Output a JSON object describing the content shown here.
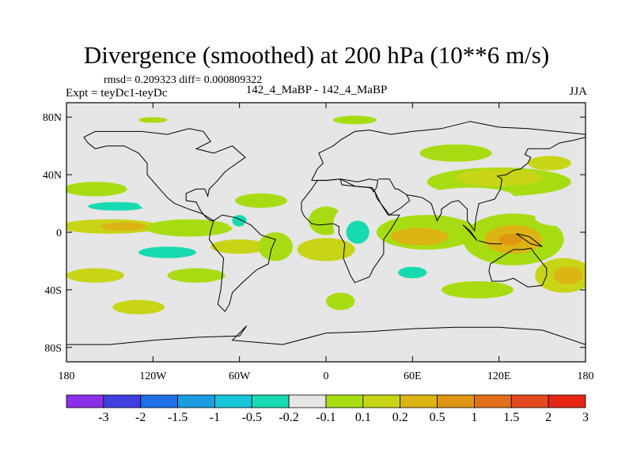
{
  "chart_data": {
    "type": "filled-contour-map",
    "title": "Divergence (smoothed) at 200 hPa (10**6 m/s)",
    "stats_text": "rmsd= 0.209323  diff= 0.000809322",
    "experiment_text": "Expt = teyDc1-teyDc",
    "center_label": "142_4_MaBP - 142_4_MaBP",
    "season": "JJA",
    "x_axis": {
      "range": [
        -180,
        180
      ],
      "ticks": [
        {
          "value": -180,
          "label": "180"
        },
        {
          "value": -120,
          "label": "120W"
        },
        {
          "value": -60,
          "label": "60W"
        },
        {
          "value": 0,
          "label": "0"
        },
        {
          "value": 60,
          "label": "60E"
        },
        {
          "value": 120,
          "label": "120E"
        },
        {
          "value": 180,
          "label": "180"
        }
      ]
    },
    "y_axis": {
      "range": [
        -90,
        90
      ],
      "ticks": [
        {
          "value": 80,
          "label": "80N"
        },
        {
          "value": 40,
          "label": "40N"
        },
        {
          "value": 0,
          "label": "0"
        },
        {
          "value": -40,
          "label": "40S"
        },
        {
          "value": -80,
          "label": "80S"
        }
      ]
    },
    "colorbar": {
      "labels": [
        "-3",
        "-2",
        "-1.5",
        "-1",
        "-0.5",
        "-0.2",
        "-0.1",
        "0.1",
        "0.2",
        "0.5",
        "1",
        "1.5",
        "2",
        "3"
      ],
      "colors": [
        "#8c2fe8",
        "#3f3fe0",
        "#1f6fe6",
        "#1c9be0",
        "#18c6da",
        "#18dab0",
        "#e6e6e6",
        "#a8dc12",
        "#c8d416",
        "#dcb414",
        "#de9614",
        "#e2701a",
        "#e44a1e",
        "#e62414"
      ]
    },
    "regions": [
      {
        "level": "0.1",
        "lon": -160,
        "lat": 30,
        "rx": 22,
        "ry": 5
      },
      {
        "level": "-0.1",
        "lon": -150,
        "lat": 18,
        "rx": 35,
        "ry": 6
      },
      {
        "level": "-0.2",
        "lon": -145,
        "lat": 18,
        "rx": 20,
        "ry": 3
      },
      {
        "level": "-0.1",
        "lon": -90,
        "lat": 20,
        "rx": 40,
        "ry": 8
      },
      {
        "level": "0.2",
        "lon": -150,
        "lat": 4,
        "rx": 35,
        "ry": 5
      },
      {
        "level": "0.5",
        "lon": -140,
        "lat": 4,
        "rx": 16,
        "ry": 3
      },
      {
        "level": "0.1",
        "lon": -95,
        "lat": 3,
        "rx": 30,
        "ry": 6
      },
      {
        "level": "-0.1",
        "lon": -150,
        "lat": -15,
        "rx": 35,
        "ry": 6
      },
      {
        "level": "-0.2",
        "lon": -110,
        "lat": -14,
        "rx": 20,
        "ry": 4
      },
      {
        "level": "0.2",
        "lon": -160,
        "lat": -30,
        "rx": 20,
        "ry": 5
      },
      {
        "level": "0.1",
        "lon": -90,
        "lat": -30,
        "rx": 20,
        "ry": 5
      },
      {
        "level": "-0.1",
        "lon": -165,
        "lat": -50,
        "rx": 15,
        "ry": 8
      },
      {
        "level": "0.2",
        "lon": -130,
        "lat": -52,
        "rx": 18,
        "ry": 5
      },
      {
        "level": "-0.1",
        "lon": -115,
        "lat": -74,
        "rx": 14,
        "ry": 3
      },
      {
        "level": "-0.1",
        "lon": -70,
        "lat": -74,
        "rx": 10,
        "ry": 2
      },
      {
        "level": "-0.1",
        "lon": -60,
        "lat": 10,
        "rx": 10,
        "ry": 8
      },
      {
        "level": "-0.2",
        "lon": -60,
        "lat": 8,
        "rx": 5,
        "ry": 4
      },
      {
        "level": "0.1",
        "lon": -45,
        "lat": 22,
        "rx": 18,
        "ry": 5
      },
      {
        "level": "-0.1",
        "lon": -45,
        "lat": 5,
        "rx": 12,
        "ry": 5
      },
      {
        "level": "0.2",
        "lon": -60,
        "lat": -10,
        "rx": 20,
        "ry": 5
      },
      {
        "level": "0.1",
        "lon": -35,
        "lat": -10,
        "rx": 12,
        "ry": 10
      },
      {
        "level": "-0.1",
        "lon": -40,
        "lat": -28,
        "rx": 15,
        "ry": 5
      },
      {
        "level": "-0.1",
        "lon": -30,
        "lat": -48,
        "rx": 25,
        "ry": 8
      },
      {
        "level": "-0.1",
        "lon": -10,
        "lat": 38,
        "rx": 30,
        "ry": 6
      },
      {
        "level": "-0.1",
        "lon": 20,
        "lat": 30,
        "rx": 20,
        "ry": 6
      },
      {
        "level": "0.1",
        "lon": 0,
        "lat": 8,
        "rx": 12,
        "ry": 10
      },
      {
        "level": "-0.1",
        "lon": 20,
        "lat": 5,
        "rx": 15,
        "ry": 15
      },
      {
        "level": "-0.2",
        "lon": 22,
        "lat": 0,
        "rx": 8,
        "ry": 8
      },
      {
        "level": "0.2",
        "lon": 0,
        "lat": -12,
        "rx": 20,
        "ry": 8
      },
      {
        "level": "-0.1",
        "lon": 10,
        "lat": -30,
        "rx": 20,
        "ry": 5
      },
      {
        "level": "0.1",
        "lon": 10,
        "lat": -48,
        "rx": 10,
        "ry": 6
      },
      {
        "level": "-0.1",
        "lon": 30,
        "lat": -55,
        "rx": 10,
        "ry": 6
      },
      {
        "level": "-0.1",
        "lon": 30,
        "lat": 50,
        "rx": 8,
        "ry": 5
      },
      {
        "level": "0.1",
        "lon": 20,
        "lat": 78,
        "rx": 15,
        "ry": 3
      },
      {
        "level": "-0.1",
        "lon": -35,
        "lat": 78,
        "rx": 10,
        "ry": 3
      },
      {
        "level": "0.1",
        "lon": -120,
        "lat": 78,
        "rx": 10,
        "ry": 2
      },
      {
        "level": "-0.1",
        "lon": -15,
        "lat": 60,
        "rx": 8,
        "ry": 4
      },
      {
        "level": "0.1",
        "lon": 120,
        "lat": 35,
        "rx": 50,
        "ry": 10
      },
      {
        "level": "0.2",
        "lon": 120,
        "lat": 38,
        "rx": 30,
        "ry": 6
      },
      {
        "level": "0.1",
        "lon": 90,
        "lat": 55,
        "rx": 25,
        "ry": 6
      },
      {
        "level": "0.2",
        "lon": 155,
        "lat": 48,
        "rx": 15,
        "ry": 5
      },
      {
        "level": "-0.1",
        "lon": 100,
        "lat": 25,
        "rx": 30,
        "ry": 6
      },
      {
        "level": "0.1",
        "lon": 70,
        "lat": 0,
        "rx": 35,
        "ry": 12
      },
      {
        "level": "0.5",
        "lon": 65,
        "lat": -3,
        "rx": 20,
        "ry": 6
      },
      {
        "level": "0.1",
        "lon": 130,
        "lat": -5,
        "rx": 35,
        "ry": 18
      },
      {
        "level": "0.5",
        "lon": 130,
        "lat": -5,
        "rx": 20,
        "ry": 10
      },
      {
        "level": "1",
        "lon": 128,
        "lat": -5,
        "rx": 8,
        "ry": 4
      },
      {
        "level": "-0.1",
        "lon": 60,
        "lat": -28,
        "rx": 25,
        "ry": 8
      },
      {
        "level": "-0.2",
        "lon": 60,
        "lat": -28,
        "rx": 10,
        "ry": 4
      },
      {
        "level": "0.1",
        "lon": 105,
        "lat": -40,
        "rx": 25,
        "ry": 6
      },
      {
        "level": "0.2",
        "lon": 165,
        "lat": -30,
        "rx": 20,
        "ry": 12
      },
      {
        "level": "0.5",
        "lon": 168,
        "lat": -30,
        "rx": 10,
        "ry": 6
      },
      {
        "level": "-0.1",
        "lon": 165,
        "lat": 10,
        "rx": 20,
        "ry": 6
      },
      {
        "level": "-0.1",
        "lon": 130,
        "lat": -65,
        "rx": 12,
        "ry": 3
      }
    ],
    "coastlines": [
      [
        [
          -168,
          66
        ],
        [
          -160,
          70
        ],
        [
          -140,
          70
        ],
        [
          -128,
          70
        ],
        [
          -110,
          68
        ],
        [
          -95,
          72
        ],
        [
          -85,
          70
        ],
        [
          -80,
          63
        ],
        [
          -90,
          58
        ],
        [
          -78,
          55
        ],
        [
          -65,
          60
        ],
        [
          -56,
          52
        ],
        [
          -66,
          45
        ],
        [
          -70,
          42
        ],
        [
          -76,
          35
        ],
        [
          -81,
          30
        ],
        [
          -82,
          25
        ],
        [
          -84,
          30
        ],
        [
          -90,
          30
        ],
        [
          -97,
          27
        ],
        [
          -97,
          22
        ],
        [
          -90,
          21
        ],
        [
          -87,
          15
        ],
        [
          -83,
          10
        ],
        [
          -80,
          8
        ],
        [
          -78,
          8
        ],
        [
          -86,
          13
        ],
        [
          -95,
          16
        ],
        [
          -105,
          20
        ],
        [
          -110,
          24
        ],
        [
          -117,
          32
        ],
        [
          -124,
          40
        ],
        [
          -124,
          48
        ],
        [
          -130,
          55
        ],
        [
          -140,
          60
        ],
        [
          -152,
          60
        ],
        [
          -160,
          58
        ],
        [
          -165,
          62
        ],
        [
          -168,
          66
        ]
      ],
      [
        [
          -78,
          8
        ],
        [
          -72,
          12
        ],
        [
          -62,
          10
        ],
        [
          -52,
          5
        ],
        [
          -45,
          -2
        ],
        [
          -35,
          -5
        ],
        [
          -38,
          -12
        ],
        [
          -40,
          -22
        ],
        [
          -48,
          -26
        ],
        [
          -58,
          -35
        ],
        [
          -65,
          -42
        ],
        [
          -67,
          -50
        ],
        [
          -70,
          -55
        ],
        [
          -75,
          -50
        ],
        [
          -73,
          -40
        ],
        [
          -72,
          -30
        ],
        [
          -71,
          -18
        ],
        [
          -76,
          -12
        ],
        [
          -81,
          -5
        ],
        [
          -80,
          1
        ],
        [
          -78,
          8
        ]
      ],
      [
        [
          -10,
          36
        ],
        [
          -6,
          44
        ],
        [
          -2,
          48
        ],
        [
          -5,
          55
        ],
        [
          5,
          60
        ],
        [
          10,
          64
        ],
        [
          20,
          70
        ],
        [
          30,
          71
        ],
        [
          45,
          68
        ],
        [
          60,
          70
        ],
        [
          80,
          72
        ],
        [
          100,
          77
        ],
        [
          120,
          73
        ],
        [
          140,
          72
        ],
        [
          160,
          70
        ],
        [
          180,
          68
        ]
      ],
      [
        [
          -10,
          36
        ],
        [
          0,
          36
        ],
        [
          10,
          37
        ],
        [
          22,
          35
        ],
        [
          30,
          37
        ],
        [
          36,
          36
        ],
        [
          35,
          31
        ],
        [
          33,
          28
        ],
        [
          32,
          30
        ],
        [
          30,
          31
        ],
        [
          20,
          32
        ],
        [
          11,
          33
        ],
        [
          10,
          37
        ]
      ],
      [
        [
          -17,
          15
        ],
        [
          -17,
          21
        ],
        [
          -10,
          30
        ],
        [
          -6,
          36
        ],
        [
          0,
          36
        ],
        [
          10,
          37
        ],
        [
          20,
          32
        ],
        [
          32,
          31
        ],
        [
          34,
          28
        ],
        [
          38,
          20
        ],
        [
          43,
          12
        ],
        [
          51,
          12
        ],
        [
          45,
          2
        ],
        [
          40,
          -5
        ],
        [
          40,
          -15
        ],
        [
          33,
          -25
        ],
        [
          30,
          -31
        ],
        [
          20,
          -35
        ],
        [
          17,
          -30
        ],
        [
          12,
          -18
        ],
        [
          13,
          -8
        ],
        [
          9,
          -1
        ],
        [
          9,
          4
        ],
        [
          5,
          6
        ],
        [
          -5,
          5
        ],
        [
          -10,
          6
        ],
        [
          -15,
          11
        ],
        [
          -17,
          15
        ]
      ],
      [
        [
          34,
          28
        ],
        [
          35,
          24
        ],
        [
          44,
          12
        ],
        [
          52,
          17
        ],
        [
          58,
          22
        ],
        [
          56,
          26
        ],
        [
          50,
          30
        ],
        [
          48,
          30
        ],
        [
          44,
          37
        ],
        [
          36,
          37
        ]
      ],
      [
        [
          56,
          26
        ],
        [
          62,
          25
        ],
        [
          67,
          24
        ],
        [
          73,
          20
        ],
        [
          77,
          8
        ],
        [
          80,
          13
        ],
        [
          80,
          16
        ],
        [
          87,
          21
        ],
        [
          92,
          22
        ],
        [
          98,
          16
        ],
        [
          98,
          8
        ],
        [
          103,
          1
        ],
        [
          104,
          10
        ],
        [
          106,
          20
        ],
        [
          110,
          21
        ],
        [
          117,
          23
        ],
        [
          121,
          30
        ],
        [
          122,
          37
        ],
        [
          119,
          39
        ],
        [
          125,
          40
        ],
        [
          130,
          43
        ],
        [
          135,
          44
        ],
        [
          140,
          48
        ],
        [
          142,
          52
        ],
        [
          138,
          54
        ],
        [
          140,
          58
        ],
        [
          155,
          58
        ],
        [
          162,
          62
        ],
        [
          172,
          64
        ],
        [
          180,
          66
        ]
      ],
      [
        [
          114,
          -22
        ],
        [
          113,
          -27
        ],
        [
          115,
          -34
        ],
        [
          123,
          -34
        ],
        [
          130,
          -32
        ],
        [
          135,
          -35
        ],
        [
          140,
          -38
        ],
        [
          150,
          -37
        ],
        [
          153,
          -30
        ],
        [
          153,
          -25
        ],
        [
          145,
          -15
        ],
        [
          142,
          -11
        ],
        [
          137,
          -12
        ],
        [
          130,
          -12
        ],
        [
          125,
          -15
        ],
        [
          114,
          -22
        ]
      ],
      [
        [
          95,
          5
        ],
        [
          100,
          1
        ],
        [
          105,
          -6
        ],
        [
          98,
          2
        ],
        [
          95,
          5
        ]
      ],
      [
        [
          106,
          -6
        ],
        [
          114,
          -8
        ],
        [
          122,
          -8
        ]
      ],
      [
        [
          132,
          -1
        ],
        [
          141,
          -3
        ],
        [
          150,
          -10
        ],
        [
          142,
          -8
        ],
        [
          132,
          -1
        ]
      ],
      [
        [
          -180,
          -78
        ],
        [
          -150,
          -78
        ],
        [
          -120,
          -75
        ],
        [
          -90,
          -73
        ],
        [
          -60,
          -72
        ],
        [
          -55,
          -65
        ],
        [
          -65,
          -75
        ],
        [
          -30,
          -78
        ],
        [
          0,
          -70
        ],
        [
          30,
          -69
        ],
        [
          60,
          -67
        ],
        [
          90,
          -66
        ],
        [
          120,
          -66
        ],
        [
          150,
          -68
        ],
        [
          165,
          -73
        ],
        [
          180,
          -78
        ]
      ]
    ]
  }
}
